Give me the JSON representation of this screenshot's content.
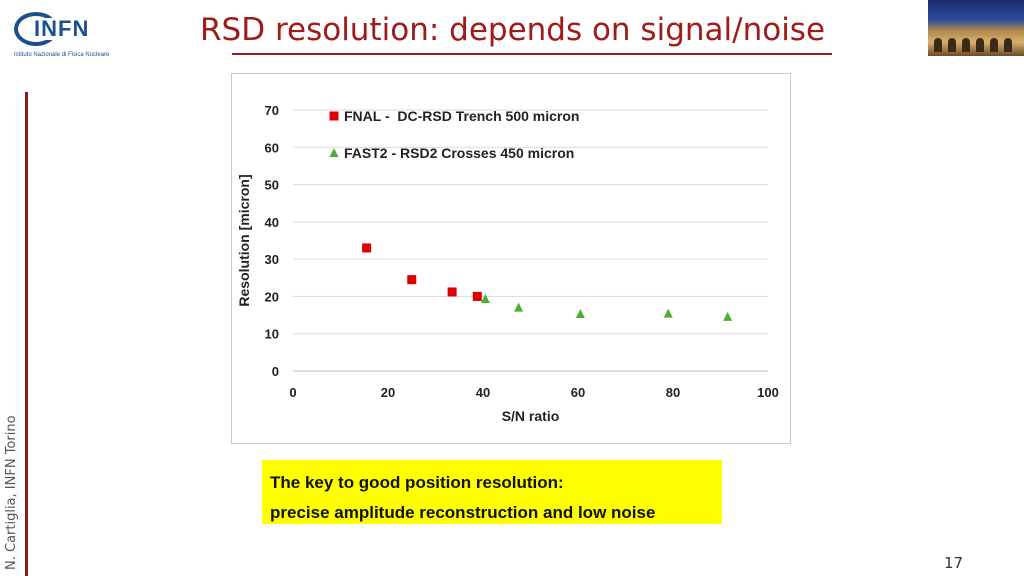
{
  "logo": {
    "text": "INFN",
    "subtitle": "Istituto Nazionale di Fisica Nucleare"
  },
  "slide": {
    "title": "RSD resolution: depends on signal/noise",
    "author": "N. Cartiglia, INFN Torino",
    "page_number": "17"
  },
  "colors": {
    "title": "#a01a1a",
    "fnal": "#e00000",
    "fast2": "#4caf32",
    "note_bg": "#ffff00"
  },
  "note": {
    "line1": "The key to good position resolution:",
    "line2": "precise amplitude reconstruction and low noise"
  },
  "chart_data": {
    "type": "scatter",
    "xlabel": "S/N ratio",
    "ylabel": "Resolution [micron]",
    "xlim": [
      0,
      100
    ],
    "ylim": [
      0,
      70
    ],
    "xticks": [
      0,
      20,
      40,
      60,
      80,
      100
    ],
    "yticks": [
      0,
      10,
      20,
      30,
      40,
      50,
      60,
      70
    ],
    "grid": "horizontal",
    "legend": "top-left",
    "series": [
      {
        "name": "FNAL -  DC-RSD Trench 500 micron",
        "marker": "square",
        "color": "#e00000",
        "points": [
          [
            15.5,
            33
          ],
          [
            25,
            24.5
          ],
          [
            33.5,
            21.2
          ],
          [
            38.8,
            20
          ]
        ]
      },
      {
        "name": "FAST2 - RSD2 Crosses 450 micron",
        "marker": "triangle",
        "color": "#4caf32",
        "points": [
          [
            40.5,
            19.3
          ],
          [
            47.5,
            17
          ],
          [
            60.5,
            15.3
          ],
          [
            79,
            15.4
          ],
          [
            91.5,
            14.5
          ]
        ]
      }
    ]
  }
}
